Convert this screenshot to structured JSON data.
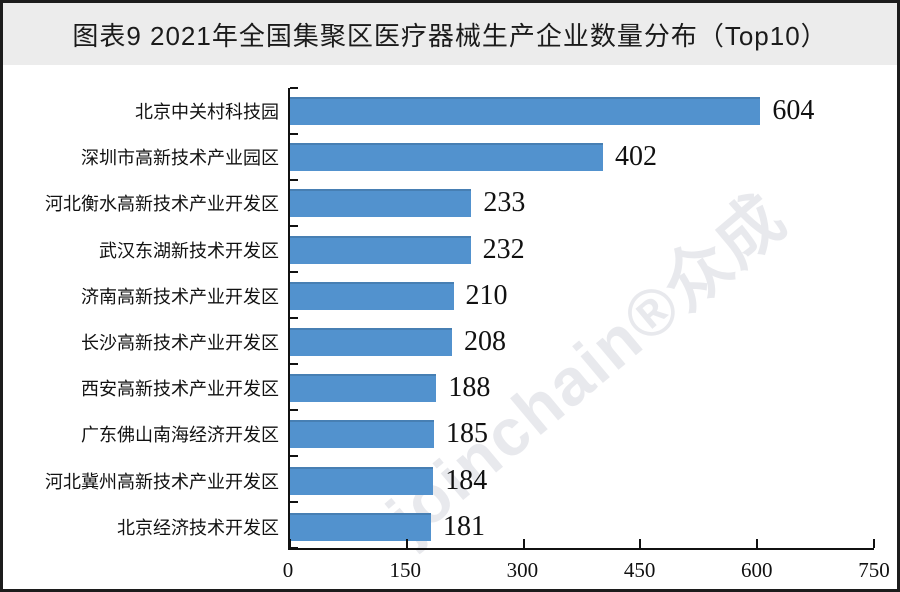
{
  "header": {
    "title": "图表9 2021年全国集聚区医疗器械生产企业数量分布（Top10）"
  },
  "watermark": {
    "text": "joinchain®众成"
  },
  "chart_data": {
    "type": "bar",
    "orientation": "horizontal",
    "title": "图表9 2021年全国集聚区医疗器械生产企业数量分布（Top10）",
    "categories": [
      "北京中关村科技园",
      "深圳市高新技术产业园区",
      "河北衡水高新技术产业开发区",
      "武汉东湖新技术开发区",
      "济南高新技术产业开发区",
      "长沙高新技术产业开发区",
      "西安高新技术产业开发区",
      "广东佛山南海经济开发区",
      "河北冀州高新技术产业开发区",
      "北京经济技术开发区"
    ],
    "values": [
      604,
      402,
      233,
      232,
      210,
      208,
      188,
      185,
      184,
      181
    ],
    "xlabel": "",
    "ylabel": "",
    "xlim": [
      0,
      750
    ],
    "xticks": [
      0,
      150,
      300,
      450,
      600,
      750
    ],
    "grid": false,
    "legend": false,
    "value_labels_shown": true,
    "bar_color": "#5292ce",
    "axis_color": "#111111",
    "title_band_color": "#ececec"
  }
}
